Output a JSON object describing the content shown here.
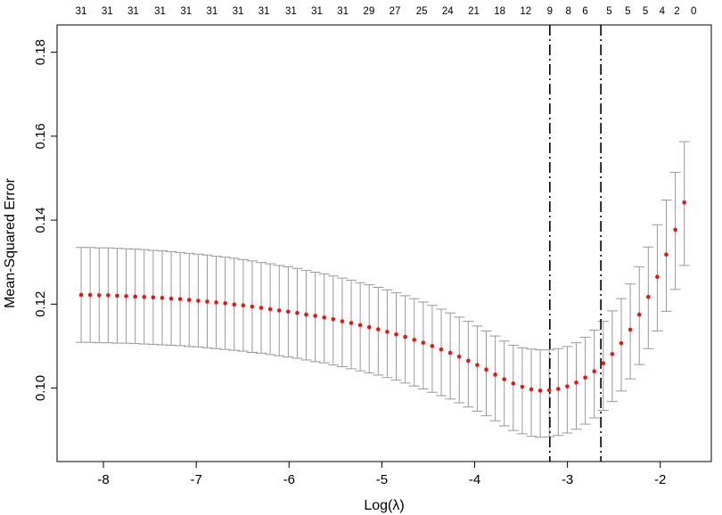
{
  "chart_data": {
    "type": "scatter",
    "xlabel": "Log(λ)",
    "ylabel": "Mean-Squared Error",
    "xlim": [
      -8.5,
      -1.45
    ],
    "ylim": [
      0.0825,
      0.1865
    ],
    "x_ticks": [
      -8,
      -7,
      -6,
      -5,
      -4,
      -3,
      -2
    ],
    "x_tick_labels": [
      "-8",
      "-7",
      "-6",
      "-5",
      "-4",
      "-3",
      "-2"
    ],
    "y_ticks": [
      0.1,
      0.12,
      0.14,
      0.16,
      0.18
    ],
    "y_tick_labels": [
      "0.10",
      "0.12",
      "0.14",
      "0.16",
      "0.18"
    ],
    "top_axis_labels": [
      {
        "x": -8.24,
        "label": "31"
      },
      {
        "x": -7.96,
        "label": "31"
      },
      {
        "x": -7.68,
        "label": "31"
      },
      {
        "x": -7.39,
        "label": "31"
      },
      {
        "x": -7.11,
        "label": "31"
      },
      {
        "x": -6.83,
        "label": "31"
      },
      {
        "x": -6.55,
        "label": "31"
      },
      {
        "x": -6.27,
        "label": "31"
      },
      {
        "x": -5.98,
        "label": "31"
      },
      {
        "x": -5.7,
        "label": "31"
      },
      {
        "x": -5.42,
        "label": "31"
      },
      {
        "x": -5.14,
        "label": "29"
      },
      {
        "x": -4.86,
        "label": "27"
      },
      {
        "x": -4.57,
        "label": "25"
      },
      {
        "x": -4.29,
        "label": "24"
      },
      {
        "x": -4.01,
        "label": "21"
      },
      {
        "x": -3.73,
        "label": "18"
      },
      {
        "x": -3.45,
        "label": "12"
      },
      {
        "x": -3.19,
        "label": "9"
      },
      {
        "x": -2.99,
        "label": "8"
      },
      {
        "x": -2.81,
        "label": "6"
      },
      {
        "x": -2.55,
        "label": "5"
      },
      {
        "x": -2.35,
        "label": "5"
      },
      {
        "x": -2.16,
        "label": "5"
      },
      {
        "x": -1.98,
        "label": "4"
      },
      {
        "x": -1.82,
        "label": "2"
      },
      {
        "x": -1.64,
        "label": "0"
      }
    ],
    "vlines": [
      {
        "x": -3.19,
        "style": "dash-dot"
      },
      {
        "x": -2.64,
        "style": "dash-dot"
      }
    ],
    "point_color": "#ee1111",
    "errorbar_color": "#999999",
    "series": [
      {
        "x": [
          -8.24,
          -8.143,
          -8.046,
          -7.949,
          -7.852,
          -7.755,
          -7.658,
          -7.561,
          -7.464,
          -7.367,
          -7.27,
          -7.173,
          -7.076,
          -6.979,
          -6.882,
          -6.785,
          -6.688,
          -6.591,
          -6.494,
          -6.397,
          -6.3,
          -6.203,
          -6.106,
          -6.009,
          -5.912,
          -5.815,
          -5.718,
          -5.621,
          -5.524,
          -5.427,
          -5.33,
          -5.233,
          -5.136,
          -5.039,
          -4.942,
          -4.845,
          -4.748,
          -4.651,
          -4.554,
          -4.457,
          -4.36,
          -4.263,
          -4.166,
          -4.069,
          -3.972,
          -3.875,
          -3.778,
          -3.681,
          -3.584,
          -3.487,
          -3.39,
          -3.293,
          -3.196,
          -3.099,
          -3.002,
          -2.905,
          -2.808,
          -2.711,
          -2.614,
          -2.517,
          -2.42,
          -2.323,
          -2.226,
          -2.129,
          -2.032,
          -1.935,
          -1.838,
          -1.741
        ],
        "y": [
          0.1222,
          0.1222,
          0.1221,
          0.1221,
          0.122,
          0.1219,
          0.1218,
          0.1217,
          0.1216,
          0.1215,
          0.1213,
          0.1212,
          0.121,
          0.1208,
          0.1206,
          0.1204,
          0.1202,
          0.1199,
          0.1197,
          0.1194,
          0.1191,
          0.1188,
          0.1185,
          0.1182,
          0.1179,
          0.1175,
          0.1172,
          0.1168,
          0.1164,
          0.1159,
          0.1155,
          0.115,
          0.1145,
          0.114,
          0.1134,
          0.1128,
          0.1122,
          0.1115,
          0.1108,
          0.11,
          0.1092,
          0.1084,
          0.1075,
          0.1065,
          0.1055,
          0.1044,
          0.1032,
          0.1021,
          0.1011,
          0.1003,
          0.0997,
          0.0994,
          0.0995,
          0.0998,
          0.1004,
          0.1013,
          0.1025,
          0.104,
          0.1059,
          0.1081,
          0.1107,
          0.1139,
          0.1175,
          0.1217,
          0.1265,
          0.1318,
          0.1377,
          0.1442
        ],
        "ylow": [
          0.1109,
          0.1109,
          0.1108,
          0.1108,
          0.1107,
          0.1107,
          0.1106,
          0.1105,
          0.1104,
          0.1103,
          0.1102,
          0.1101,
          0.1099,
          0.1098,
          0.1096,
          0.1094,
          0.1092,
          0.109,
          0.1088,
          0.1085,
          0.1083,
          0.108,
          0.1077,
          0.1074,
          0.1071,
          0.1067,
          0.1063,
          0.106,
          0.1055,
          0.1051,
          0.1046,
          0.1041,
          0.1036,
          0.1031,
          0.1025,
          0.1019,
          0.1012,
          0.1005,
          0.0998,
          0.099,
          0.0982,
          0.0974,
          0.0965,
          0.0955,
          0.0945,
          0.0934,
          0.0922,
          0.091,
          0.0899,
          0.0891,
          0.0885,
          0.0883,
          0.0884,
          0.0887,
          0.0893,
          0.0902,
          0.0914,
          0.0929,
          0.0947,
          0.0968,
          0.0993,
          0.1022,
          0.1056,
          0.1094,
          0.1136,
          0.1183,
          0.1235,
          0.1292
        ],
        "yhigh": [
          0.1335,
          0.1335,
          0.1334,
          0.1334,
          0.1333,
          0.1332,
          0.1331,
          0.133,
          0.1328,
          0.1327,
          0.1325,
          0.1323,
          0.1321,
          0.1319,
          0.1317,
          0.1314,
          0.1312,
          0.1309,
          0.1306,
          0.1303,
          0.1299,
          0.1296,
          0.1292,
          0.1289,
          0.1285,
          0.128,
          0.1276,
          0.1272,
          0.1267,
          0.1262,
          0.1257,
          0.1251,
          0.1246,
          0.124,
          0.1234,
          0.1227,
          0.122,
          0.1213,
          0.1205,
          0.1197,
          0.1188,
          0.1179,
          0.1169,
          0.1159,
          0.1148,
          0.1136,
          0.1124,
          0.1112,
          0.1102,
          0.1096,
          0.1093,
          0.1091,
          0.1091,
          0.1094,
          0.1099,
          0.1108,
          0.1121,
          0.1138,
          0.1159,
          0.1184,
          0.1213,
          0.1248,
          0.1289,
          0.1336,
          0.1389,
          0.1448,
          0.1514,
          0.1587
        ]
      }
    ]
  }
}
